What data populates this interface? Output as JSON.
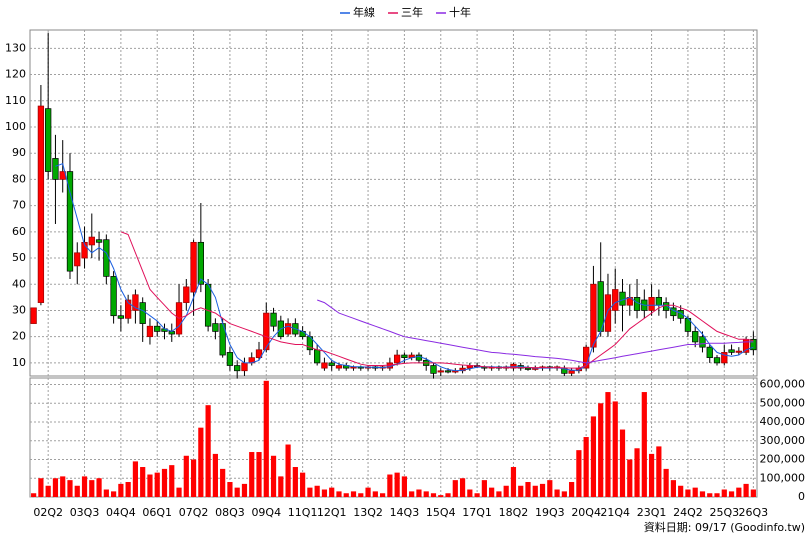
{
  "chart_data": {
    "type": "candlestick",
    "categories": [
      null,
      null,
      "02Q2",
      null,
      null,
      null,
      null,
      "03Q3",
      null,
      null,
      null,
      null,
      "04Q4",
      null,
      null,
      null,
      null,
      "06Q1",
      null,
      null,
      null,
      null,
      "07Q2",
      null,
      null,
      null,
      null,
      "08Q3",
      null,
      null,
      null,
      null,
      "09Q4",
      null,
      null,
      null,
      null,
      "11Q1",
      null,
      null,
      null,
      "12Q1",
      null,
      null,
      null,
      null,
      "13Q2",
      null,
      null,
      null,
      null,
      "14Q3",
      null,
      null,
      null,
      null,
      "15Q4",
      null,
      null,
      null,
      null,
      "17Q1",
      null,
      null,
      null,
      null,
      "18Q2",
      null,
      null,
      null,
      null,
      "19Q3",
      null,
      null,
      null,
      null,
      "20Q4",
      null,
      null,
      null,
      "21Q4",
      null,
      null,
      null,
      null,
      "23Q1",
      null,
      null,
      null,
      null,
      "24Q2",
      null,
      null,
      null,
      null,
      "25Q3",
      null,
      null,
      null,
      "26Q3"
    ],
    "open": [
      25,
      33,
      107,
      88,
      80,
      83,
      47,
      50,
      55,
      57,
      57,
      43,
      28,
      27,
      30,
      33,
      20,
      24,
      23,
      22,
      21,
      33,
      37,
      56,
      40,
      25,
      25,
      14,
      9,
      7,
      10,
      12,
      15,
      29,
      26,
      21,
      25,
      22,
      20,
      15,
      8,
      10,
      8,
      9,
      8,
      8.5,
      8,
      8.5,
      8,
      8,
      10,
      13,
      12,
      13,
      11,
      9,
      6.5,
      7,
      6.5,
      7,
      8,
      9,
      8.5,
      8,
      8.5,
      8,
      8,
      9,
      8,
      7.5,
      8,
      8.5,
      8,
      8,
      6,
      7,
      8,
      16,
      41,
      22,
      30,
      37,
      32,
      35,
      34,
      30,
      35,
      33,
      31,
      30,
      27,
      22,
      20,
      16,
      12,
      10,
      15,
      14,
      14,
      19
    ],
    "high": [
      31,
      116,
      136,
      97,
      95,
      90,
      56,
      62,
      67,
      60,
      59,
      45,
      32,
      36,
      38,
      35,
      27,
      26,
      25,
      25,
      40,
      42,
      57,
      71,
      42,
      27,
      27,
      16,
      11,
      12,
      14,
      18,
      33,
      31,
      28,
      27,
      27,
      24,
      22,
      17,
      12,
      11,
      10,
      10,
      9,
      9,
      9,
      9,
      9,
      12,
      15,
      14,
      14,
      14,
      12,
      10,
      8,
      8,
      8,
      9,
      10,
      10,
      9,
      9,
      9,
      9,
      10,
      10,
      9,
      9,
      9,
      9,
      9,
      9,
      8,
      9,
      17,
      47,
      56,
      44,
      46,
      42,
      40,
      42,
      38,
      40,
      38,
      35,
      33,
      32,
      28,
      24,
      22,
      17,
      13,
      17,
      17,
      16,
      20,
      22
    ],
    "low": [
      25,
      32,
      80,
      63,
      75,
      42,
      40,
      46,
      50,
      49,
      40,
      25,
      22,
      25,
      25,
      18,
      17,
      20,
      19,
      18,
      20,
      30,
      28,
      37,
      22,
      19,
      12,
      7,
      4,
      5,
      9,
      11,
      14,
      22,
      19,
      20,
      20,
      19,
      13,
      9,
      7,
      7,
      7,
      7,
      7,
      7,
      7,
      7,
      7,
      7,
      9,
      10,
      11,
      10,
      7,
      4,
      5,
      6,
      6,
      6,
      7,
      8,
      7,
      7,
      7,
      7,
      7,
      7,
      7,
      7,
      7,
      7,
      7,
      5,
      5,
      6,
      7,
      14,
      20,
      20,
      25,
      22,
      28,
      27,
      27,
      28,
      28,
      27,
      26,
      25,
      20,
      16,
      14,
      10,
      9,
      9,
      13,
      13,
      13,
      13
    ],
    "close": [
      31,
      108,
      83,
      80,
      83,
      45,
      52,
      56,
      58,
      56,
      43,
      28,
      27,
      34,
      36,
      25,
      24,
      22,
      22,
      21,
      33,
      39,
      56,
      40,
      24,
      22,
      13,
      9,
      7,
      10,
      12,
      15,
      29,
      24,
      20,
      25,
      21,
      20,
      15,
      10,
      10,
      9,
      9,
      8,
      8.5,
      8,
      8.5,
      8,
      8.5,
      10,
      13,
      12,
      13,
      11,
      9,
      6,
      7,
      6.5,
      7,
      8,
      9,
      8.5,
      8,
      8.5,
      8,
      8.5,
      9.5,
      8,
      7.5,
      8,
      8.5,
      8,
      8.5,
      6,
      7,
      8,
      16,
      40,
      22,
      36,
      38,
      32,
      35,
      30,
      30,
      35,
      32,
      30,
      28,
      27,
      22,
      18,
      16,
      12,
      10,
      14,
      14,
      14.5,
      19,
      15
    ],
    "up_color": "#ff0000",
    "down_color": "#00a800",
    "ylim": [
      5,
      137
    ],
    "yticks": [
      10,
      20,
      30,
      40,
      50,
      60,
      70,
      80,
      90,
      100,
      110,
      120,
      130
    ],
    "series": [
      {
        "name": "年線",
        "color": "#1a5fe0",
        "values": [
          null,
          null,
          null,
          85,
          86,
          75,
          65,
          55,
          52,
          54,
          52,
          46,
          38,
          33,
          31,
          30,
          28,
          26,
          23,
          22,
          24,
          28,
          35,
          42,
          40,
          35,
          25,
          17,
          12,
          10,
          10,
          11,
          16,
          20,
          23,
          24,
          23,
          22,
          20,
          17,
          14,
          11,
          9.5,
          9,
          8.5,
          8.5,
          8.3,
          8.3,
          8.2,
          8.6,
          9.5,
          11,
          12,
          12.5,
          11.5,
          10,
          8.5,
          7.5,
          7,
          7.2,
          7.8,
          8.3,
          8.5,
          8.5,
          8.3,
          8.3,
          8.5,
          8.5,
          8.3,
          8,
          8,
          8,
          8.2,
          7.7,
          7.2,
          7.2,
          9,
          17,
          22,
          30,
          33,
          34,
          35,
          33,
          32,
          32,
          32,
          32,
          30,
          29,
          27,
          24,
          21,
          17,
          14,
          13,
          12.5,
          13,
          15,
          16
        ]
      },
      {
        "name": "三年",
        "color": "#e0105a",
        "values": [
          null,
          null,
          null,
          null,
          null,
          null,
          null,
          null,
          null,
          null,
          null,
          null,
          60,
          59,
          52,
          45,
          38,
          35,
          32,
          29,
          27,
          28,
          30,
          31,
          30,
          29,
          27,
          25,
          24,
          23,
          22,
          21,
          20,
          19,
          18,
          17.5,
          17,
          17,
          16,
          15,
          14.5,
          13.5,
          12.5,
          11.5,
          10.5,
          9.5,
          9,
          9,
          9,
          9.2,
          9.5,
          9.8,
          10,
          10,
          10,
          10,
          10,
          9.8,
          9.5,
          9.2,
          9,
          8.8,
          8.5,
          8.3,
          8.2,
          8.2,
          8.2,
          8.2,
          8.2,
          8.2,
          8.2,
          8.2,
          8.2,
          8.1,
          8,
          8,
          9,
          11,
          13,
          15,
          17,
          20,
          23,
          25,
          27,
          29,
          31,
          32,
          32,
          31,
          30,
          28,
          26,
          24,
          22,
          21,
          20,
          19,
          19,
          18.5
        ]
      },
      {
        "name": "十年",
        "color": "#8a2be2",
        "values": [
          null,
          null,
          null,
          null,
          null,
          null,
          null,
          null,
          null,
          null,
          null,
          null,
          null,
          null,
          null,
          null,
          null,
          null,
          null,
          null,
          null,
          null,
          null,
          null,
          null,
          null,
          null,
          null,
          null,
          null,
          null,
          null,
          null,
          null,
          null,
          null,
          null,
          null,
          null,
          34,
          33,
          31,
          29,
          28,
          27,
          26,
          25,
          24,
          23,
          22,
          21,
          20,
          19.5,
          19,
          18.5,
          18,
          17.5,
          17,
          16.5,
          16,
          15.5,
          15,
          14.5,
          14,
          13.8,
          13.5,
          13.3,
          13,
          12.7,
          12.4,
          12.2,
          12,
          11.7,
          11.4,
          11,
          10.5,
          10,
          10.5,
          11,
          11.5,
          12,
          12.5,
          13,
          13.5,
          14,
          14.5,
          15,
          15.5,
          16,
          16.5,
          17,
          17,
          17.3,
          17.5,
          17.5,
          17.5,
          17.7,
          17.8,
          18,
          18
        ]
      }
    ],
    "volume": {
      "color": "#ff0000",
      "values": [
        20000,
        100000,
        60000,
        100000,
        110000,
        90000,
        60000,
        110000,
        90000,
        100000,
        40000,
        30000,
        70000,
        80000,
        190000,
        160000,
        120000,
        130000,
        150000,
        170000,
        50000,
        220000,
        200000,
        370000,
        490000,
        230000,
        150000,
        80000,
        50000,
        70000,
        240000,
        240000,
        620000,
        220000,
        110000,
        280000,
        160000,
        130000,
        50000,
        60000,
        40000,
        50000,
        30000,
        20000,
        30000,
        20000,
        50000,
        30000,
        20000,
        120000,
        130000,
        110000,
        30000,
        40000,
        30000,
        20000,
        10000,
        20000,
        90000,
        100000,
        40000,
        20000,
        90000,
        50000,
        30000,
        60000,
        160000,
        60000,
        80000,
        60000,
        70000,
        90000,
        40000,
        30000,
        80000,
        250000,
        320000,
        430000,
        500000,
        560000,
        510000,
        360000,
        200000,
        260000,
        560000,
        230000,
        270000,
        150000,
        90000,
        60000,
        40000,
        50000,
        30000,
        20000,
        20000,
        40000,
        30000,
        50000,
        70000,
        40000
      ],
      "ylim": [
        0,
        635000
      ],
      "yticks": [
        0,
        {
          "value": 100000,
          "label": "100,000"
        },
        {
          "value": 200000,
          "label": "200,000"
        },
        {
          "value": 300000,
          "label": "300,000"
        },
        {
          "value": 400000,
          "label": "400,000"
        },
        {
          "value": 500000,
          "label": "500,000"
        },
        {
          "value": 600000,
          "label": "600,000"
        }
      ]
    },
    "grid": true,
    "source": "資料日期: 09/17 (Goodinfo.tw)"
  }
}
